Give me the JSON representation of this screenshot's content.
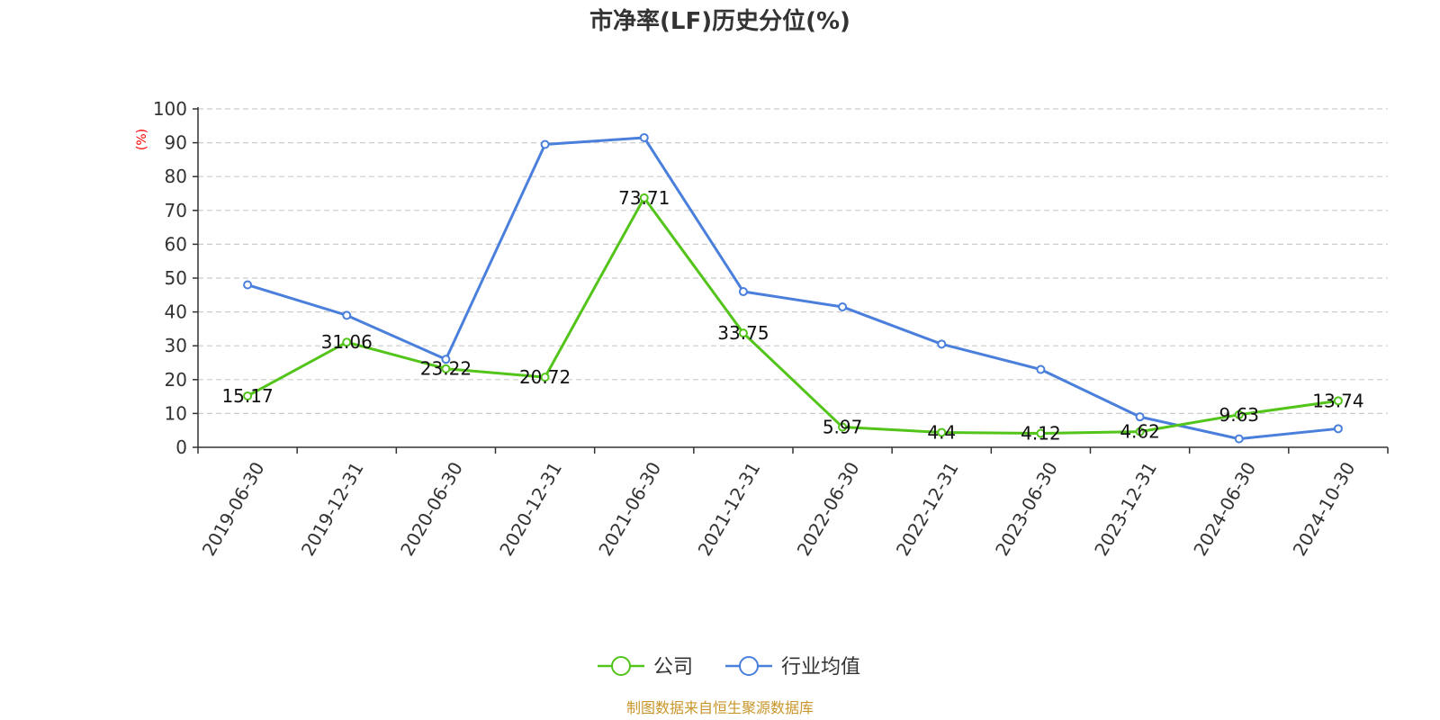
{
  "chart_data": {
    "type": "line",
    "title": "市净率(LF)历史分位(%)",
    "ylabel": "(%)",
    "xlabel": "",
    "ylim": [
      0,
      100
    ],
    "yticks": [
      0,
      10,
      20,
      30,
      40,
      50,
      60,
      70,
      80,
      90,
      100
    ],
    "grid": true,
    "legend_position": "bottom-center",
    "categories": [
      "2019-06-30",
      "2019-12-31",
      "2020-06-30",
      "2020-12-31",
      "2021-06-30",
      "2021-12-31",
      "2022-06-30",
      "2022-12-31",
      "2023-06-30",
      "2023-12-31",
      "2024-06-30",
      "2024-10-30"
    ],
    "series": [
      {
        "name": "公司",
        "color": "#52c41a",
        "values": [
          15.17,
          31.06,
          23.22,
          20.72,
          73.71,
          33.75,
          5.97,
          4.4,
          4.12,
          4.62,
          9.63,
          13.74
        ],
        "labels": [
          "15.17",
          "31.06",
          "23.22",
          "20.72",
          "73.71",
          "33.75",
          "5.97",
          "4.4",
          "4.12",
          "4.62",
          "9.63",
          "13.74"
        ],
        "show_labels": true
      },
      {
        "name": "行业均值",
        "color": "#4a7fdc",
        "values": [
          48,
          39,
          26,
          89.5,
          91.5,
          46,
          41.5,
          30.5,
          23,
          9,
          2.5,
          5.5
        ],
        "show_labels": false
      }
    ],
    "source": "制图数据来自恒生聚源数据库",
    "source_color": "#c8962a",
    "ylabel_color": "#ff0000",
    "axis_color": "#333333",
    "grid_color": "#cccccc"
  }
}
